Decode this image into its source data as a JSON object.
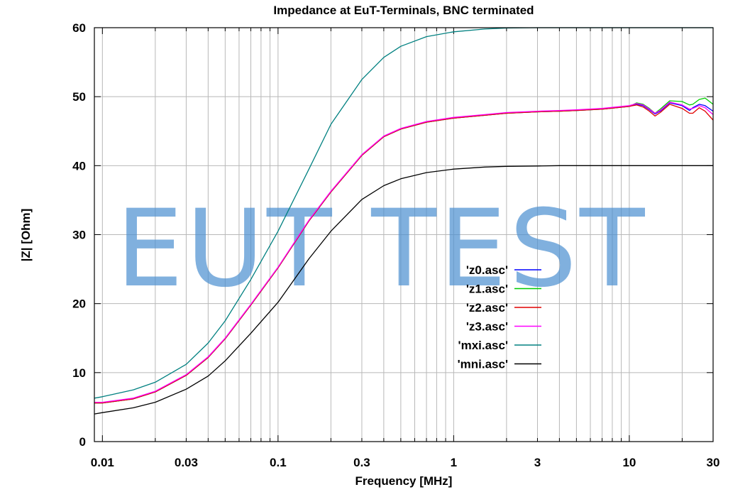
{
  "watermark": "EUT TEST",
  "chart_data": {
    "type": "line",
    "title": "Impedance at EuT-Terminals, BNC terminated",
    "xlabel": "Frequency [MHz]",
    "ylabel": "|Z| [Ohm]",
    "x_scale": "log",
    "xlim": [
      0.009,
      30
    ],
    "ylim": [
      0,
      60
    ],
    "x_ticks": [
      {
        "value": 0.01,
        "label": "0.01"
      },
      {
        "value": 0.03,
        "label": "0.03"
      },
      {
        "value": 0.1,
        "label": "0.1"
      },
      {
        "value": 0.3,
        "label": "0.3"
      },
      {
        "value": 1,
        "label": "1"
      },
      {
        "value": 3,
        "label": "3"
      },
      {
        "value": 10,
        "label": "10"
      },
      {
        "value": 30,
        "label": "30"
      }
    ],
    "y_ticks": [
      {
        "value": 0,
        "label": "0"
      },
      {
        "value": 10,
        "label": "10"
      },
      {
        "value": 20,
        "label": "20"
      },
      {
        "value": 30,
        "label": "30"
      },
      {
        "value": 40,
        "label": "40"
      },
      {
        "value": 50,
        "label": "50"
      },
      {
        "value": 60,
        "label": "60"
      }
    ],
    "grid": true,
    "legend_position": "center-right",
    "x": [
      0.009,
      0.01,
      0.015,
      0.02,
      0.03,
      0.04,
      0.05,
      0.07,
      0.1,
      0.15,
      0.2,
      0.3,
      0.4,
      0.5,
      0.7,
      1,
      1.5,
      2,
      3,
      4,
      5,
      7,
      10,
      11,
      12,
      13,
      14,
      15,
      17,
      20,
      22,
      23,
      25,
      27,
      30
    ],
    "series": [
      {
        "name": "'z0.asc'",
        "color": "#0000ff",
        "values": [
          5.6,
          5.6,
          6.2,
          7.2,
          9.6,
          12.2,
          14.9,
          19.8,
          25.2,
          32.0,
          36.2,
          41.5,
          44.2,
          45.3,
          46.3,
          46.9,
          47.3,
          47.6,
          47.8,
          47.9,
          48.0,
          48.2,
          48.6,
          48.9,
          48.7,
          48.1,
          47.5,
          47.9,
          49.1,
          48.7,
          48.0,
          48.4,
          48.9,
          48.7,
          47.9
        ]
      },
      {
        "name": "'z1.asc'",
        "color": "#00cc00",
        "values": [
          5.6,
          5.6,
          6.2,
          7.2,
          9.6,
          12.2,
          14.9,
          19.8,
          25.2,
          32.0,
          36.2,
          41.5,
          44.2,
          45.3,
          46.3,
          46.9,
          47.3,
          47.6,
          47.8,
          47.9,
          48.0,
          48.2,
          48.6,
          49.1,
          48.9,
          48.3,
          47.6,
          48.2,
          49.4,
          49.3,
          48.8,
          48.9,
          49.6,
          49.8,
          48.9
        ]
      },
      {
        "name": "'z2.asc'",
        "color": "#e00000",
        "values": [
          5.6,
          5.6,
          6.2,
          7.2,
          9.6,
          12.2,
          14.9,
          19.8,
          25.2,
          32.0,
          36.2,
          41.5,
          44.2,
          45.3,
          46.3,
          46.9,
          47.3,
          47.6,
          47.8,
          47.9,
          48.0,
          48.2,
          48.6,
          48.8,
          48.5,
          47.9,
          47.2,
          47.7,
          48.9,
          48.3,
          47.6,
          47.6,
          48.4,
          47.9,
          46.6
        ]
      },
      {
        "name": "'z3.asc'",
        "color": "#ff00ff",
        "values": [
          5.7,
          5.7,
          6.3,
          7.3,
          9.7,
          12.3,
          15.0,
          19.9,
          25.3,
          32.1,
          36.3,
          41.6,
          44.3,
          45.4,
          46.4,
          47.0,
          47.4,
          47.7,
          47.9,
          48.0,
          48.1,
          48.3,
          48.7,
          49.0,
          48.8,
          48.2,
          47.6,
          48.0,
          49.2,
          48.8,
          48.2,
          48.3,
          48.7,
          48.4,
          47.4
        ]
      },
      {
        "name": "'mxi.asc'",
        "color": "#008080",
        "values": [
          6.3,
          6.5,
          7.5,
          8.6,
          11.2,
          14.3,
          17.5,
          23.5,
          30.5,
          39.5,
          46.0,
          52.5,
          55.7,
          57.3,
          58.7,
          59.4,
          59.8,
          59.95,
          60,
          60,
          60,
          60,
          60,
          60,
          60,
          60,
          60,
          60,
          60,
          60,
          60,
          60,
          60,
          60,
          60
        ]
      },
      {
        "name": "'mni.asc'",
        "color": "#000000",
        "values": [
          4.0,
          4.2,
          4.9,
          5.7,
          7.6,
          9.5,
          11.7,
          15.7,
          20.2,
          26.5,
          30.5,
          35.1,
          37.1,
          38.1,
          39.0,
          39.5,
          39.8,
          39.9,
          39.95,
          40,
          40,
          40,
          40,
          40,
          40,
          40,
          40,
          40,
          40,
          40,
          40,
          40,
          40,
          40,
          40
        ]
      }
    ]
  }
}
